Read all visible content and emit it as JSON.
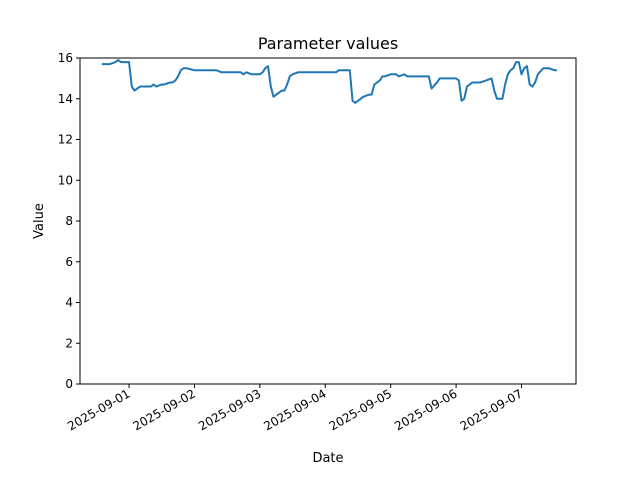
{
  "chart_data": {
    "type": "line",
    "title": "Parameter values",
    "xlabel": "Date",
    "ylabel": "Value",
    "xlim": [
      "2025-08-31T06:00",
      "2025-09-07T20:00"
    ],
    "ylim": [
      0,
      16
    ],
    "x_ticks": [
      "2025-09-01",
      "2025-09-02",
      "2025-09-03",
      "2025-09-04",
      "2025-09-05",
      "2025-09-06",
      "2025-09-07"
    ],
    "y_ticks": [
      0,
      2,
      4,
      6,
      8,
      10,
      12,
      14,
      16
    ],
    "grid": false,
    "line_color": "#1f77b4",
    "series": [
      {
        "x": [
          "2025-08-31T14:00",
          "2025-08-31T17:00",
          "2025-08-31T19:00",
          "2025-08-31T20:00",
          "2025-08-31T21:00",
          "2025-08-31T23:00",
          "2025-09-01T00:00",
          "2025-09-01T01:00",
          "2025-09-01T02:00",
          "2025-09-01T03:00",
          "2025-09-01T04:00",
          "2025-09-01T06:00",
          "2025-09-01T08:00",
          "2025-09-01T09:00",
          "2025-09-01T10:00",
          "2025-09-01T12:00",
          "2025-09-01T13:00",
          "2025-09-01T15:00",
          "2025-09-01T16:00",
          "2025-09-01T17:00",
          "2025-09-01T18:00",
          "2025-09-01T19:00",
          "2025-09-01T20:00",
          "2025-09-01T21:00",
          "2025-09-02T00:00",
          "2025-09-02T04:00",
          "2025-09-02T07:00",
          "2025-09-02T08:00",
          "2025-09-02T10:00",
          "2025-09-02T14:00",
          "2025-09-02T16:00",
          "2025-09-02T17:00",
          "2025-09-02T18:00",
          "2025-09-02T19:00",
          "2025-09-02T21:00",
          "2025-09-03T00:00",
          "2025-09-03T01:00",
          "2025-09-03T02:00",
          "2025-09-03T03:00",
          "2025-09-03T04:00",
          "2025-09-03T05:00",
          "2025-09-03T06:00",
          "2025-09-03T07:00",
          "2025-09-03T08:00",
          "2025-09-03T09:00",
          "2025-09-03T10:00",
          "2025-09-03T11:00",
          "2025-09-03T12:00",
          "2025-09-03T14:00",
          "2025-09-03T16:00",
          "2025-09-04T00:00",
          "2025-09-04T04:00",
          "2025-09-04T05:00",
          "2025-09-04T06:00",
          "2025-09-04T08:00",
          "2025-09-04T09:00",
          "2025-09-04T10:00",
          "2025-09-04T11:00",
          "2025-09-04T12:00",
          "2025-09-04T14:00",
          "2025-09-04T16:00",
          "2025-09-04T17:00",
          "2025-09-04T18:00",
          "2025-09-04T20:00",
          "2025-09-04T21:00",
          "2025-09-04T22:00",
          "2025-09-05T00:00",
          "2025-09-05T02:00",
          "2025-09-05T03:00",
          "2025-09-05T05:00",
          "2025-09-05T06:00",
          "2025-09-05T09:00",
          "2025-09-05T14:00",
          "2025-09-05T15:00",
          "2025-09-05T17:00",
          "2025-09-05T18:00",
          "2025-09-05T20:00",
          "2025-09-06T00:00",
          "2025-09-06T01:00",
          "2025-09-06T02:00",
          "2025-09-06T03:00",
          "2025-09-06T04:00",
          "2025-09-06T06:00",
          "2025-09-06T07:00",
          "2025-09-06T09:00",
          "2025-09-06T13:00",
          "2025-09-06T14:00",
          "2025-09-06T15:00",
          "2025-09-06T17:00",
          "2025-09-06T18:00",
          "2025-09-06T19:00",
          "2025-09-06T20:00",
          "2025-09-06T21:00",
          "2025-09-06T22:00",
          "2025-09-06T23:00",
          "2025-09-07T00:00",
          "2025-09-07T01:00",
          "2025-09-07T02:00",
          "2025-09-07T03:00",
          "2025-09-07T04:00",
          "2025-09-07T05:00",
          "2025-09-07T06:00",
          "2025-09-07T08:00",
          "2025-09-07T10:00",
          "2025-09-07T12:00",
          "2025-09-07T13:00"
        ],
        "y": [
          15.7,
          15.7,
          15.8,
          15.9,
          15.8,
          15.8,
          15.8,
          14.6,
          14.4,
          14.5,
          14.6,
          14.6,
          14.6,
          14.7,
          14.6,
          14.7,
          14.7,
          14.8,
          14.8,
          14.9,
          15.1,
          15.4,
          15.5,
          15.5,
          15.4,
          15.4,
          15.4,
          15.4,
          15.3,
          15.3,
          15.3,
          15.3,
          15.2,
          15.3,
          15.2,
          15.2,
          15.3,
          15.5,
          15.6,
          14.6,
          14.1,
          14.2,
          14.3,
          14.4,
          14.4,
          14.7,
          15.1,
          15.2,
          15.3,
          15.3,
          15.3,
          15.3,
          15.4,
          15.4,
          15.4,
          15.4,
          13.9,
          13.8,
          13.9,
          14.1,
          14.2,
          14.2,
          14.7,
          14.9,
          15.1,
          15.1,
          15.2,
          15.2,
          15.1,
          15.2,
          15.1,
          15.1,
          15.1,
          14.5,
          14.8,
          15.0,
          15.0,
          15.0,
          14.9,
          13.9,
          14.0,
          14.6,
          14.8,
          14.8,
          14.8,
          15.0,
          14.4,
          14.0,
          14.0,
          14.7,
          15.2,
          15.4,
          15.5,
          15.8,
          15.8,
          15.2,
          15.5,
          15.6,
          14.7,
          14.6,
          14.8,
          15.2,
          15.5,
          15.5,
          15.4,
          15.4
        ]
      }
    ]
  }
}
